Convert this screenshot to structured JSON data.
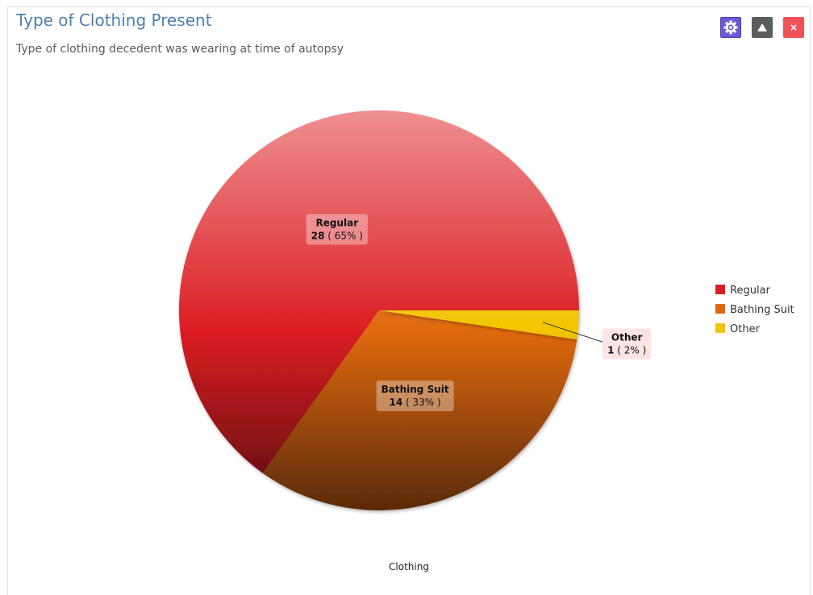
{
  "panel": {
    "title": "Type of Clothing Present",
    "subtitle": "Type of clothing decedent was wearing at time of autopsy",
    "buttons": {
      "settings_icon": "gear-icon",
      "collapse_icon": "triangle-up-icon",
      "close_label": "×"
    }
  },
  "chart_data": {
    "type": "pie",
    "xlabel": "Clothing",
    "legend_position": "right",
    "slices": [
      {
        "label": "Regular",
        "value": 28,
        "percent": "65%",
        "color": "#dc1e23"
      },
      {
        "label": "Bathing Suit",
        "value": 14,
        "percent": "33%",
        "color": "#e0690e"
      },
      {
        "label": "Other",
        "value": 1,
        "percent": "2%",
        "color": "#f2c500"
      }
    ]
  }
}
